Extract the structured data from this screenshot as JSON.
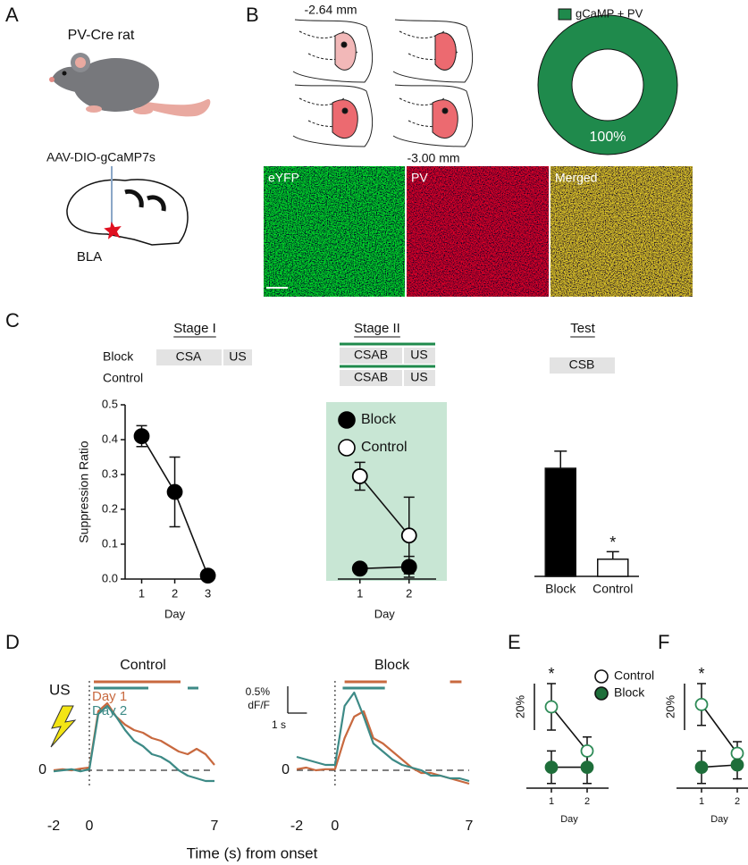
{
  "panel_a": {
    "label": "A",
    "animal": "PV-Cre rat",
    "virus": "AAV-DIO-gCaMP7s",
    "region": "BLA"
  },
  "panel_b": {
    "label": "B",
    "section_labels": [
      "-2.64 mm",
      "-3.00 mm"
    ],
    "image_labels": [
      "eYFP",
      "PV",
      "Merged"
    ]
  },
  "panel_c": {
    "label": "C",
    "stages": [
      "Stage I",
      "Stage II",
      "Test"
    ],
    "groups": [
      "Block",
      "Control"
    ],
    "stage1_boxes": [
      "CSA",
      "US"
    ],
    "stage2_boxes": [
      [
        "CSAB",
        "US"
      ],
      [
        "CSAB",
        "US"
      ]
    ],
    "test_box": "CSB"
  },
  "panel_d": {
    "label": "D",
    "us": "US",
    "x_label": "Time (s) from onset",
    "scale_bar": {
      "y": {
        "value": 0.5,
        "label": "0.5%"
      },
      "y_unit": "dF/F",
      "x": {
        "value": 1,
        "label": "1 s"
      }
    }
  },
  "chart_data": [
    {
      "type": "pie",
      "categories": [
        "gCaMP + PV"
      ],
      "values": [
        100
      ],
      "value_labels": [
        "100%"
      ],
      "colors": [
        "#1f8a4c"
      ],
      "donut": true
    },
    {
      "type": "line",
      "x_label": "Day",
      "y_label": "Suppression Ratio",
      "x": [
        1,
        2,
        3
      ],
      "xlim": [
        0.5,
        3.2
      ],
      "xticks": [
        1,
        2,
        3
      ],
      "ylim": [
        0,
        0.5
      ],
      "yticks": [
        {
          "value": 0,
          "label": "0.0"
        },
        0.1,
        0.2,
        0.3,
        0.4,
        0.5
      ],
      "series": [
        {
          "color": "#000000",
          "marker_fill": "#000000",
          "values": [
            0.41,
            0.25,
            0.01
          ],
          "errors": [
            0.03,
            0.1,
            0.005
          ]
        }
      ]
    },
    {
      "type": "line",
      "x_label": "Day",
      "x": [
        1,
        2
      ],
      "xlim": [
        0.55,
        2.55
      ],
      "xticks": [
        1,
        2
      ],
      "ylim": [
        0,
        0.5
      ],
      "background": "#c8e6d4",
      "series": [
        {
          "name": "Block",
          "color": "#000000",
          "marker_fill": "#000000",
          "values": [
            0.03,
            0.035
          ],
          "errors": [
            0.012,
            0.03
          ]
        },
        {
          "name": "Control",
          "color": "#000000",
          "marker_fill": "#ffffff",
          "values": [
            0.295,
            0.125
          ],
          "errors": [
            0.04,
            0.11
          ]
        }
      ]
    },
    {
      "type": "bar",
      "categories": [
        "Block",
        "Control"
      ],
      "values": [
        0.315,
        0.05
      ],
      "errors": [
        0.05,
        0.022
      ],
      "colors": [
        "#000000",
        "#ffffff"
      ],
      "ylim": [
        0,
        0.5
      ],
      "annotations": [
        {
          "text": "*",
          "category": "Control"
        }
      ]
    },
    {
      "type": "trace",
      "title": "Control",
      "x": [
        -2,
        -1.5,
        -1,
        -0.5,
        0,
        0.5,
        1,
        1.5,
        2,
        2.5,
        3,
        3.5,
        4,
        4.5,
        5,
        5.5,
        6,
        6.5,
        7
      ],
      "xlim": [
        -2,
        7
      ],
      "xticks": [
        -2,
        0,
        7
      ],
      "ylim": [
        -0.3,
        1.5
      ],
      "yticks": [
        0
      ],
      "series": [
        {
          "name": "Day 1",
          "color": "#c8693f",
          "values": [
            0,
            0.02,
            0,
            0.03,
            0.05,
            1.1,
            1.25,
            1.0,
            0.85,
            0.75,
            0.7,
            0.6,
            0.55,
            0.45,
            0.35,
            0.3,
            0.4,
            0.3,
            0.1
          ]
        },
        {
          "name": "Day 2",
          "color": "#3d8a86",
          "values": [
            -0.02,
            0,
            0.02,
            -0.02,
            0.02,
            1.05,
            1.2,
            1.0,
            0.75,
            0.55,
            0.45,
            0.3,
            0.25,
            0.15,
            0,
            -0.1,
            -0.15,
            -0.2,
            -0.2
          ]
        }
      ],
      "sig_bars": [
        {
          "color": "#c8693f",
          "x": [
            0.25,
            5.1
          ]
        },
        {
          "color": "#3d8a86",
          "x": [
            0.25,
            3.3
          ]
        },
        {
          "color": "#3d8a86",
          "x": [
            5.5,
            6.1
          ]
        }
      ]
    },
    {
      "type": "trace",
      "title": "Block",
      "x": [
        -2,
        -1.5,
        -1,
        -0.5,
        0,
        0.5,
        1,
        1.5,
        2,
        2.5,
        3,
        3.5,
        4,
        4.5,
        5,
        5.5,
        6,
        6.5,
        7
      ],
      "xlim": [
        -2,
        7
      ],
      "xticks": [
        -2,
        0,
        7
      ],
      "ylim": [
        -0.3,
        1.5
      ],
      "yticks": [
        0
      ],
      "series": [
        {
          "color": "#c8693f",
          "values": [
            0.02,
            0.05,
            0,
            0.02,
            0.02,
            0.6,
            1.0,
            1.1,
            0.6,
            0.5,
            0.35,
            0.2,
            0.05,
            -0.05,
            -0.05,
            -0.1,
            -0.15,
            -0.2,
            -0.25
          ]
        },
        {
          "color": "#3d8a86",
          "values": [
            0.25,
            0.2,
            0.15,
            0.1,
            0.1,
            1.2,
            1.45,
            1.0,
            0.5,
            0.35,
            0.2,
            0.1,
            0.05,
            0,
            -0.1,
            -0.1,
            -0.15,
            -0.15,
            -0.2
          ]
        }
      ],
      "sig_bars": [
        {
          "color": "#c8693f",
          "x": [
            0.5,
            2.7
          ]
        },
        {
          "color": "#3d8a86",
          "x": [
            0.4,
            2.6
          ]
        },
        {
          "color": "#c8693f",
          "x": [
            6.0,
            6.6
          ]
        }
      ]
    },
    {
      "type": "line",
      "panel_label": "E",
      "x_label": "Day",
      "x": [
        1,
        2
      ],
      "xlim": [
        0.3,
        2.6
      ],
      "xticks": [
        1,
        2
      ],
      "ylim": [
        0,
        45
      ],
      "scale_bar": {
        "value": 20,
        "label": "20%"
      },
      "series": [
        {
          "name": "Control",
          "color": "#2e8b57",
          "marker_fill": "#ffffff",
          "values": [
            35,
            16
          ],
          "errors": [
            10,
            6
          ]
        },
        {
          "name": "Block",
          "color": "#1e6e3a",
          "marker_fill": "#1e6e3a",
          "values": [
            9,
            9
          ],
          "errors": [
            7,
            7
          ]
        }
      ],
      "annotations": [
        {
          "text": "*",
          "x": 1
        }
      ]
    },
    {
      "type": "line",
      "panel_label": "F",
      "x_label": "Day",
      "x": [
        1,
        2
      ],
      "xlim": [
        0.3,
        2.6
      ],
      "xticks": [
        1,
        2
      ],
      "ylim": [
        0,
        45
      ],
      "scale_bar": {
        "value": 20,
        "label": "20%"
      },
      "series": [
        {
          "color": "#2e8b57",
          "marker_fill": "#ffffff",
          "values": [
            36,
            15
          ],
          "errors": [
            9,
            5
          ]
        },
        {
          "color": "#1e6e3a",
          "marker_fill": "#1e6e3a",
          "values": [
            9,
            10
          ],
          "errors": [
            7,
            6
          ]
        }
      ],
      "annotations": [
        {
          "text": "*",
          "x": 1
        }
      ]
    }
  ]
}
